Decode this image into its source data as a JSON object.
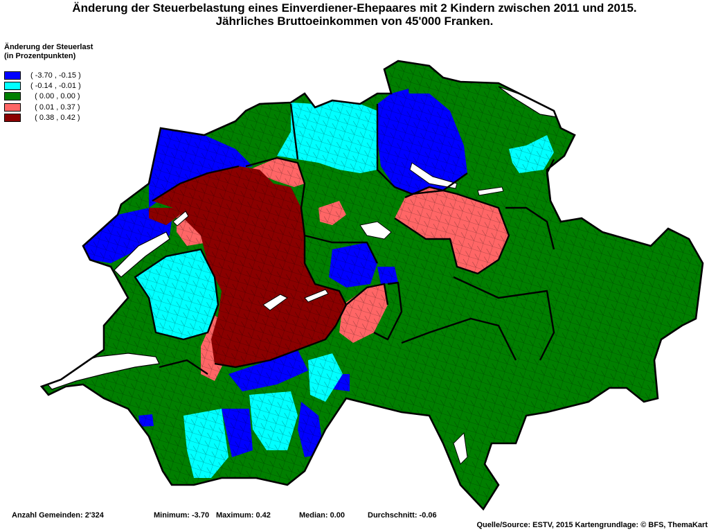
{
  "title": {
    "line1": "Änderung der Steuerbelastung eines Einverdiener-Ehepaares mit 2 Kindern zwischen 2011 und 2015.",
    "line2": "Jährliches Bruttoeinkommen von 45'000 Franken."
  },
  "legend": {
    "title_line1": "Änderung der Steuerlast",
    "title_line2": "(in Prozentpunkten)",
    "items": [
      {
        "label": "( -3.70 , -0.15 )",
        "color": "#0000ff"
      },
      {
        "label": "( -0.14 , -0.01 )",
        "color": "#00ffff"
      },
      {
        "label": "  ( 0.00 , 0.00 )",
        "color": "#007f00"
      },
      {
        "label": "  ( 0.01 , 0.37 )",
        "color": "#ff6666"
      },
      {
        "label": "  ( 0.38 , 0.42 )",
        "color": "#8b0000"
      }
    ]
  },
  "stats": {
    "count": "Anzahl Gemeinden: 2'324",
    "minimum": "Minimum: -3.70",
    "maximum": "Maximum: 0.42",
    "median": "Median: 0.00",
    "average": "Durchschnitt: -0.06"
  },
  "source": "Quelle/Source: ESTV, 2015 Kartengrundlage: © BFS, ThemaKart",
  "colors": {
    "blue": "#0000ff",
    "cyan": "#00ffff",
    "green": "#007f00",
    "salmon": "#ff6666",
    "darkred": "#8b0000",
    "lake": "#ffffff",
    "border": "#000000"
  }
}
